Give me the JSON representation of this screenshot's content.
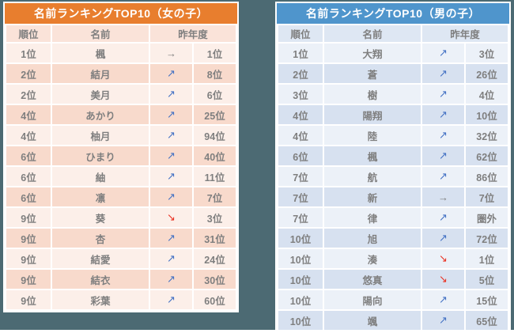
{
  "background_color": "#4C6A73",
  "text_color": "#7F7F7F",
  "trend_symbols": {
    "up": "↗",
    "down": "↘",
    "flat": "→"
  },
  "trend_colors": {
    "up": "#4472C4",
    "down": "#EA3223",
    "flat": "#7F7F7F"
  },
  "chart_data": [
    {
      "type": "table",
      "title": "名前ランキングTOP10（女の子）",
      "accent_color": "#E87E2E",
      "header_bg": "#FAE3D9",
      "row_light": "#FCEFE9",
      "row_dark": "#F8DACC",
      "columns": {
        "rank": "順位",
        "name": "名前",
        "last_year": "昨年度"
      },
      "rows": [
        {
          "rank": "1位",
          "name": "楓",
          "trend": "flat",
          "last_year": "1位"
        },
        {
          "rank": "2位",
          "name": "結月",
          "trend": "up",
          "last_year": "8位"
        },
        {
          "rank": "2位",
          "name": "美月",
          "trend": "up",
          "last_year": "6位"
        },
        {
          "rank": "4位",
          "name": "あかり",
          "trend": "up",
          "last_year": "25位"
        },
        {
          "rank": "4位",
          "name": "柚月",
          "trend": "up",
          "last_year": "94位"
        },
        {
          "rank": "6位",
          "name": "ひまり",
          "trend": "up",
          "last_year": "40位"
        },
        {
          "rank": "6位",
          "name": "紬",
          "trend": "up",
          "last_year": "11位"
        },
        {
          "rank": "6位",
          "name": "凛",
          "trend": "up",
          "last_year": "7位"
        },
        {
          "rank": "9位",
          "name": "葵",
          "trend": "down",
          "last_year": "3位"
        },
        {
          "rank": "9位",
          "name": "杏",
          "trend": "up",
          "last_year": "31位"
        },
        {
          "rank": "9位",
          "name": "結愛",
          "trend": "up",
          "last_year": "24位"
        },
        {
          "rank": "9位",
          "name": "結衣",
          "trend": "up",
          "last_year": "30位"
        },
        {
          "rank": "9位",
          "name": "彩葉",
          "trend": "up",
          "last_year": "60位"
        }
      ]
    },
    {
      "type": "table",
      "title": "名前ランキングTOP10（男の子）",
      "accent_color": "#4F95CC",
      "header_bg": "#DEE7F3",
      "row_light": "#ECF1F8",
      "row_dark": "#D7E1F0",
      "columns": {
        "rank": "順位",
        "name": "名前",
        "last_year": "昨年度"
      },
      "rows": [
        {
          "rank": "1位",
          "name": "大翔",
          "trend": "up",
          "last_year": "3位"
        },
        {
          "rank": "2位",
          "name": "蒼",
          "trend": "up",
          "last_year": "26位"
        },
        {
          "rank": "3位",
          "name": "樹",
          "trend": "up",
          "last_year": "4位"
        },
        {
          "rank": "4位",
          "name": "陽翔",
          "trend": "up",
          "last_year": "10位"
        },
        {
          "rank": "4位",
          "name": "陸",
          "trend": "up",
          "last_year": "32位"
        },
        {
          "rank": "6位",
          "name": "楓",
          "trend": "up",
          "last_year": "62位"
        },
        {
          "rank": "7位",
          "name": "航",
          "trend": "up",
          "last_year": "86位"
        },
        {
          "rank": "7位",
          "name": "新",
          "trend": "flat",
          "last_year": "7位"
        },
        {
          "rank": "7位",
          "name": "律",
          "trend": "up",
          "last_year": "圏外"
        },
        {
          "rank": "10位",
          "name": "旭",
          "trend": "up",
          "last_year": "72位"
        },
        {
          "rank": "10位",
          "name": "湊",
          "trend": "down",
          "last_year": "1位"
        },
        {
          "rank": "10位",
          "name": "悠真",
          "trend": "down",
          "last_year": "5位"
        },
        {
          "rank": "10位",
          "name": "陽向",
          "trend": "up",
          "last_year": "15位"
        },
        {
          "rank": "10位",
          "name": "颯",
          "trend": "up",
          "last_year": "65位"
        }
      ]
    }
  ]
}
